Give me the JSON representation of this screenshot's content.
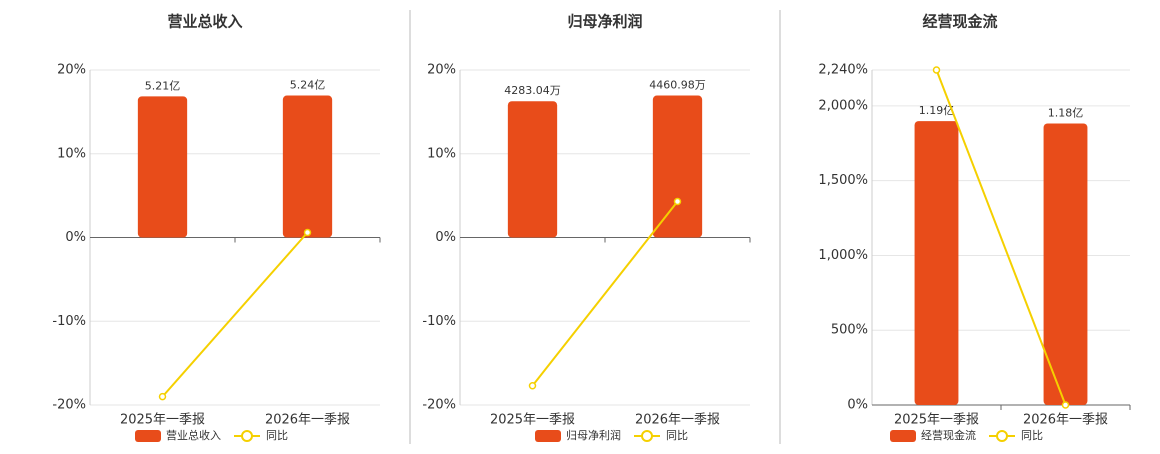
{
  "chart_data": [
    {
      "type": "bar",
      "title": "营业总收入",
      "categories": [
        "2025年一季报",
        "2026年一季报"
      ],
      "series": [
        {
          "name": "营业总收入",
          "color": "#e84c1a",
          "values": [
            521000000,
            524000000
          ],
          "value_labels": [
            "5.21亿",
            "5.24亿"
          ]
        },
        {
          "name": "同比",
          "type": "line",
          "color": "#f5d000",
          "values": [
            -19.0,
            0.6
          ]
        }
      ],
      "ylim": [
        -20,
        20
      ],
      "yticks": [
        {
          "value": -20,
          "label": "-20%"
        },
        {
          "value": -10,
          "label": "-10%"
        },
        {
          "value": 0,
          "label": "0%"
        },
        {
          "value": 10,
          "label": "10%"
        },
        {
          "value": 20,
          "label": "20%"
        }
      ],
      "grid": true
    },
    {
      "type": "bar",
      "title": "归母净利润",
      "categories": [
        "2025年一季报",
        "2026年一季报"
      ],
      "series": [
        {
          "name": "归母净利润",
          "color": "#e84c1a",
          "values": [
            42830400,
            44609800
          ],
          "value_labels": [
            "4283.04万",
            "4460.98万"
          ]
        },
        {
          "name": "同比",
          "type": "line",
          "color": "#f5d000",
          "values": [
            -17.7,
            4.3
          ]
        }
      ],
      "ylim": [
        -20,
        20
      ],
      "yticks": [
        {
          "value": -20,
          "label": "-20%"
        },
        {
          "value": -10,
          "label": "-10%"
        },
        {
          "value": 0,
          "label": "0%"
        },
        {
          "value": 10,
          "label": "10%"
        },
        {
          "value": 20,
          "label": "20%"
        }
      ],
      "grid": true
    },
    {
      "type": "bar",
      "title": "经营现金流",
      "categories": [
        "2025年一季报",
        "2026年一季报"
      ],
      "series": [
        {
          "name": "经营现金流",
          "color": "#e84c1a",
          "values": [
            119000000,
            118000000
          ],
          "value_labels": [
            "1.19亿",
            "1.18亿"
          ]
        },
        {
          "name": "同比",
          "type": "line",
          "color": "#f5d000",
          "values": [
            2240,
            0
          ]
        }
      ],
      "ylim": [
        0,
        2240
      ],
      "yticks": [
        {
          "value": 0,
          "label": "0%"
        },
        {
          "value": 500,
          "label": "500%"
        },
        {
          "value": 1000,
          "label": "1,000%"
        },
        {
          "value": 1500,
          "label": "1,500%"
        },
        {
          "value": 2000,
          "label": "2,000%"
        },
        {
          "value": 2240,
          "label": "2,240%"
        }
      ],
      "grid": true
    }
  ]
}
